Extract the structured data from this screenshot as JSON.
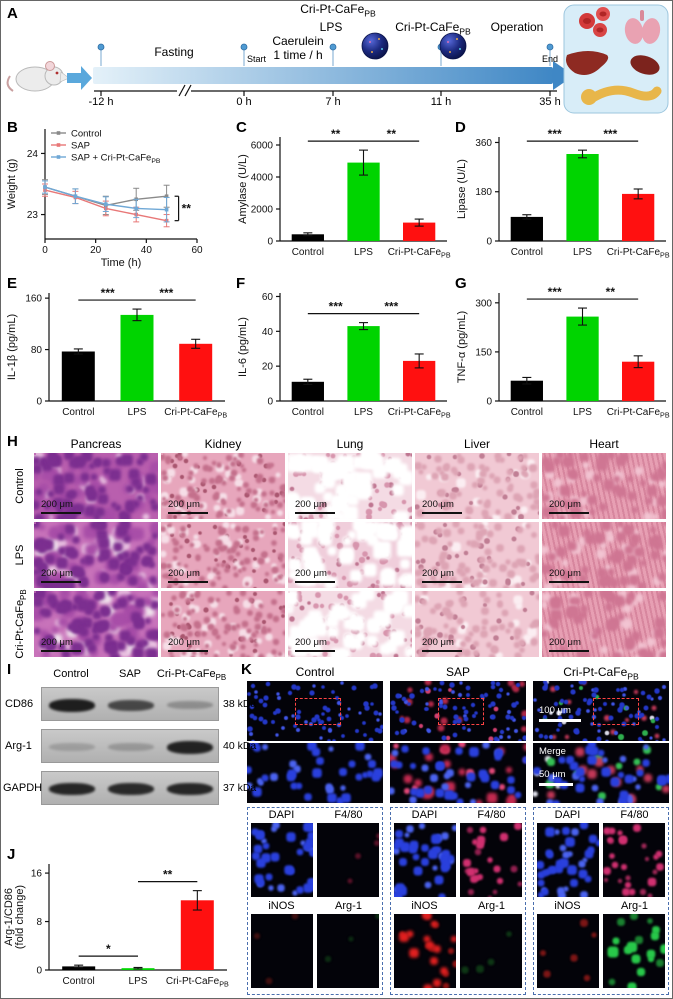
{
  "panel_letters": {
    "A": "A",
    "B": "B",
    "C": "C",
    "D": "D",
    "E": "E",
    "F": "F",
    "G": "G",
    "H": "H",
    "I": "I",
    "J": "J",
    "K": "K"
  },
  "panelA": {
    "fasting": "Fasting",
    "caerulein": [
      "Caerulein",
      "1 time / h"
    ],
    "lps": "LPS",
    "cri_pt_cafe": {
      "t": "Cri-Pt-CaFe",
      "sub": "PB"
    },
    "operation": "Operation",
    "start": "Start",
    "end": "End",
    "time_ticks": [
      "-12 h",
      "0 h",
      "7 h",
      "11 h",
      "35 h"
    ]
  },
  "chart_data": [
    {
      "id": "weight",
      "type": "line",
      "xlabel": "Time (h)",
      "ylabel": "Weight (g)",
      "xlim": [
        0,
        60
      ],
      "ylim": [
        22.6,
        24.4
      ],
      "xticks": [
        0,
        20,
        40,
        60
      ],
      "yticks": [
        23,
        24
      ],
      "x": [
        0,
        12,
        24,
        36,
        48
      ],
      "series": [
        {
          "name": {
            "t": "Control"
          },
          "color": "#8a8a8a",
          "values": [
            23.45,
            23.3,
            23.15,
            23.25,
            23.3
          ],
          "err": [
            0.12,
            0.12,
            0.15,
            0.18,
            0.18
          ]
        },
        {
          "name": {
            "t": "SAP"
          },
          "color": "#e87878",
          "values": [
            23.4,
            23.28,
            23.1,
            23.0,
            22.9
          ],
          "err": [
            0.1,
            0.1,
            0.12,
            0.12,
            0.1
          ]
        },
        {
          "name": {
            "t": "SAP + Cri-Pt-CaFe",
            "sub": "PB"
          },
          "color": "#6fa8d6",
          "values": [
            23.45,
            23.3,
            23.17,
            23.1,
            23.08
          ],
          "err": [
            0.1,
            0.12,
            0.12,
            0.15,
            0.2
          ]
        }
      ],
      "sig": "**",
      "legend_position": "top-left",
      "grid": false
    },
    {
      "id": "amylase",
      "type": "bar",
      "ylabel": "Amylase (U/L)",
      "ylim": [
        0,
        6500
      ],
      "yticks": [
        0,
        2000,
        4000,
        6000
      ],
      "categories": [
        {
          "t": "Control"
        },
        {
          "t": "LPS"
        },
        {
          "t": "Cri-Pt-CaFe",
          "sub": "PB"
        }
      ],
      "values": [
        420,
        4900,
        1150
      ],
      "errors": [
        90,
        780,
        220
      ],
      "colors": [
        "#000000",
        "#00d400",
        "#ff1010"
      ],
      "sig": [
        {
          "a": 0,
          "b": 1,
          "label": "**"
        },
        {
          "a": 1,
          "b": 2,
          "label": "**"
        }
      ]
    },
    {
      "id": "lipase",
      "type": "bar",
      "ylabel": "Lipase (U/L)",
      "ylim": [
        0,
        380
      ],
      "yticks": [
        0,
        180,
        360
      ],
      "categories": [
        {
          "t": "Control"
        },
        {
          "t": "LPS"
        },
        {
          "t": "Cri-Pt-CaFe",
          "sub": "PB"
        }
      ],
      "values": [
        88,
        318,
        172
      ],
      "errors": [
        8,
        14,
        18
      ],
      "colors": [
        "#000000",
        "#00d400",
        "#ff1010"
      ],
      "sig": [
        {
          "a": 0,
          "b": 1,
          "label": "***"
        },
        {
          "a": 1,
          "b": 2,
          "label": "***"
        }
      ]
    },
    {
      "id": "il1b",
      "type": "bar",
      "ylabel": "IL-1β (pg/mL)",
      "ylim": [
        0,
        168
      ],
      "yticks": [
        0,
        80,
        160
      ],
      "categories": [
        {
          "t": "Control"
        },
        {
          "t": "LPS"
        },
        {
          "t": "Cri-Pt-CaFe",
          "sub": "PB"
        }
      ],
      "values": [
        77,
        134,
        89
      ],
      "errors": [
        4,
        9,
        7
      ],
      "colors": [
        "#000000",
        "#00d400",
        "#ff1010"
      ],
      "sig": [
        {
          "a": 0,
          "b": 1,
          "label": "***"
        },
        {
          "a": 1,
          "b": 2,
          "label": "***"
        }
      ]
    },
    {
      "id": "il6",
      "type": "bar",
      "ylabel": "IL-6 (pg/mL)",
      "ylim": [
        0,
        62
      ],
      "yticks": [
        0,
        20,
        40,
        60
      ],
      "categories": [
        {
          "t": "Control"
        },
        {
          "t": "LPS"
        },
        {
          "t": "Cri-Pt-CaFe",
          "sub": "PB"
        }
      ],
      "values": [
        11,
        43,
        23
      ],
      "errors": [
        1.5,
        2,
        4
      ],
      "colors": [
        "#000000",
        "#00d400",
        "#ff1010"
      ],
      "sig": [
        {
          "a": 0,
          "b": 1,
          "label": "***"
        },
        {
          "a": 1,
          "b": 2,
          "label": "***"
        }
      ]
    },
    {
      "id": "tnfa",
      "type": "bar",
      "ylabel": "TNF-α (pg/mL)",
      "ylim": [
        0,
        330
      ],
      "yticks": [
        0,
        150,
        300
      ],
      "categories": [
        {
          "t": "Control"
        },
        {
          "t": "LPS"
        },
        {
          "t": "Cri-Pt-CaFe",
          "sub": "PB"
        }
      ],
      "values": [
        62,
        258,
        120
      ],
      "errors": [
        10,
        26,
        18
      ],
      "colors": [
        "#000000",
        "#00d400",
        "#ff1010"
      ],
      "sig": [
        {
          "a": 0,
          "b": 1,
          "label": "***"
        },
        {
          "a": 1,
          "b": 2,
          "label": "**"
        }
      ]
    },
    {
      "id": "foldchange",
      "type": "bar",
      "ylabel_lines": [
        "Arg-1/CD86",
        "(fold change)"
      ],
      "ylim": [
        0,
        17.5
      ],
      "yticks": [
        0,
        8,
        16
      ],
      "categories": [
        {
          "t": "Control"
        },
        {
          "t": "LPS"
        },
        {
          "t": "Cri-Pt-CaFe",
          "sub": "PB"
        }
      ],
      "values": [
        0.6,
        0.3,
        11.5
      ],
      "errors": [
        0.2,
        0.12,
        1.6
      ],
      "colors": [
        "#000000",
        "#00d400",
        "#ff1010"
      ],
      "sig": [
        {
          "a": 0,
          "b": 1,
          "label": "*"
        },
        {
          "a": 1,
          "b": 2,
          "label": "**"
        }
      ]
    }
  ],
  "panelH": {
    "columns": [
      "Pancreas",
      "Kidney",
      "Lung",
      "Liver",
      "Heart"
    ],
    "rows": [
      {
        "t": "Control"
      },
      {
        "t": "LPS"
      },
      {
        "t": "Cri-Pt-CaFe",
        "sub": "PB"
      }
    ],
    "scale_bar": "200 μm"
  },
  "panelI": {
    "lanes": [
      {
        "t": "Control"
      },
      {
        "t": "SAP"
      },
      {
        "t": "Cri-Pt-CaFe",
        "sub": "PB"
      }
    ],
    "bands": [
      {
        "name": "CD86",
        "kda": "38 kDa"
      },
      {
        "name": "Arg-1",
        "kda": "40 kDa"
      },
      {
        "name": "GAPDH",
        "kda": "37 kDa"
      }
    ]
  },
  "panelK": {
    "columns": [
      {
        "t": "Control"
      },
      {
        "t": "SAP"
      },
      {
        "t": "Cri-Pt-CaFe",
        "sub": "PB"
      }
    ],
    "scale_100": "100 μm",
    "merge_label": "Merge",
    "scale_50": "50 μm",
    "channels": [
      "DAPI",
      "F4/80",
      "iNOS",
      "Arg-1"
    ]
  },
  "colors": {
    "control_bar": "#000000",
    "lps_bar": "#00d400",
    "treatment_bar": "#ff1010",
    "control_line": "#8a8a8a",
    "sap_line": "#e87878",
    "treatment_line": "#6fa8d6"
  }
}
